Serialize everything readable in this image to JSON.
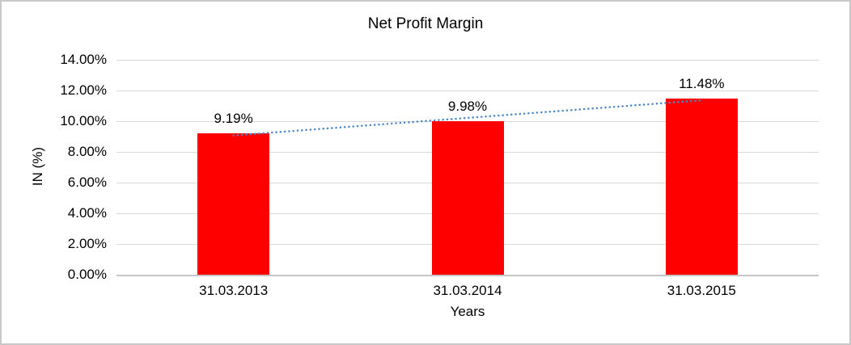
{
  "chart_data": {
    "type": "bar",
    "title": "Net Profit Margin",
    "xlabel": "Years",
    "ylabel": "IN (%)",
    "categories": [
      "31.03.2013",
      "31.03.2014",
      "31.03.2015"
    ],
    "values": [
      9.19,
      9.98,
      11.48
    ],
    "data_labels": [
      "9.19%",
      "9.98%",
      "11.48%"
    ],
    "y_tick_labels": [
      "0.00%",
      "2.00%",
      "4.00%",
      "6.00%",
      "8.00%",
      "10.00%",
      "12.00%",
      "14.00%"
    ],
    "ylim": [
      0,
      14
    ],
    "y_tick_step": 2,
    "grid": true,
    "legend_position": "none",
    "bar_color": "#FF0000",
    "trendline": {
      "type": "linear",
      "style": "dotted",
      "color": "#4A86C8"
    },
    "colors": {
      "gridline": "#D9D9D9",
      "axis_line": "#C6C6C6",
      "text": "#000000",
      "frame_border": "#C9C9C9",
      "background": "#FFFFFF"
    }
  }
}
